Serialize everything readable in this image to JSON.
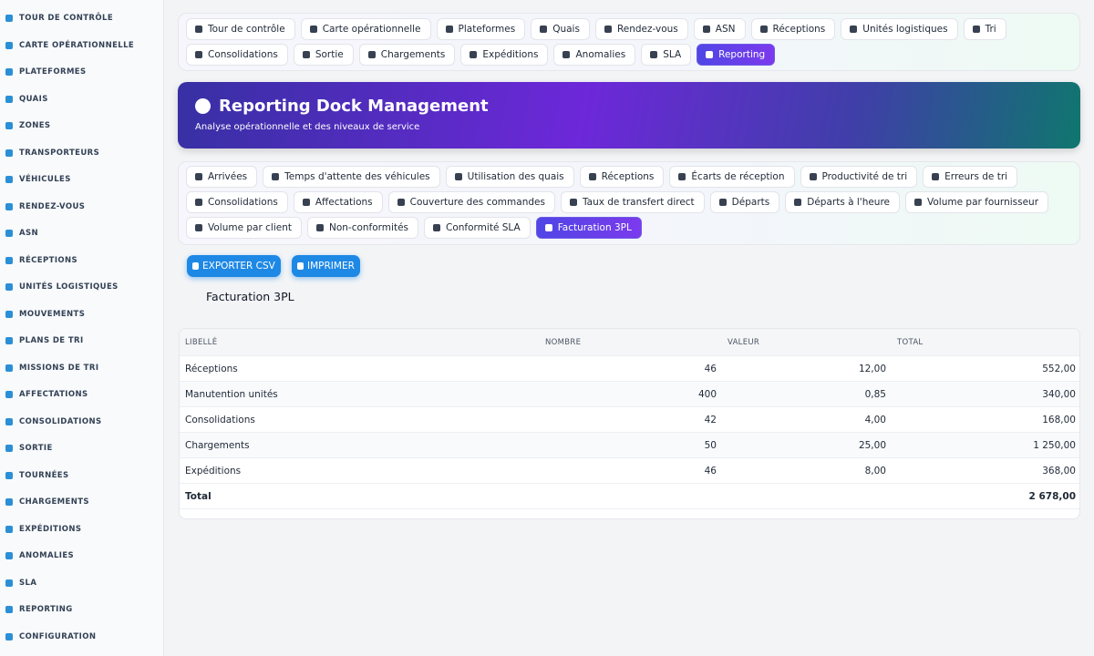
{
  "sidebar": {
    "items": [
      "TOUR DE CONTRÔLE",
      "CARTE OPÉRATIONNELLE",
      "PLATEFORMES",
      "QUAIS",
      "ZONES",
      "TRANSPORTEURS",
      "VÉHICULES",
      "RENDEZ-VOUS",
      "ASN",
      "RÉCEPTIONS",
      "UNITÉS LOGISTIQUES",
      "MOUVEMENTS",
      "PLANS DE TRI",
      "MISSIONS DE TRI",
      "AFFECTATIONS",
      "CONSOLIDATIONS",
      "SORTIE",
      "TOURNÉES",
      "CHARGEMENTS",
      "EXPÉDITIONS",
      "ANOMALIES",
      "SLA",
      "REPORTING",
      "CONFIGURATION"
    ]
  },
  "top_nav": {
    "items": [
      "Tour de contrôle",
      "Carte opérationnelle",
      "Plateformes",
      "Quais",
      "Rendez-vous",
      "ASN",
      "Réceptions",
      "Unités logistiques",
      "Tri",
      "Consolidations",
      "Sortie",
      "Chargements",
      "Expéditions",
      "Anomalies",
      "SLA",
      "Reporting"
    ],
    "active_index": 15
  },
  "header": {
    "title": "Reporting Dock Management",
    "subtitle": "Analyse opérationnelle et des niveaux de service"
  },
  "report_tabs": {
    "items": [
      "Arrivées",
      "Temps d'attente des véhicules",
      "Utilisation des quais",
      "Réceptions",
      "Écarts de réception",
      "Productivité de tri",
      "Erreurs de tri",
      "Consolidations",
      "Affectations",
      "Couverture des commandes",
      "Taux de transfert direct",
      "Départs",
      "Départs à l'heure",
      "Volume par fournisseur",
      "Volume par client",
      "Non-conformités",
      "Conformité SLA",
      "Facturation 3PL"
    ],
    "active_index": 17
  },
  "actions": [
    "EXPORTER CSV",
    "IMPRIMER"
  ],
  "section_title": "Facturation 3PL",
  "table": {
    "columns": [
      "LIBELLÉ",
      "NOMBRE",
      "VALEUR",
      "TOTAL"
    ],
    "rows": [
      [
        "Réceptions",
        "46",
        "12,00",
        "552,00"
      ],
      [
        "Manutention unités",
        "400",
        "0,85",
        "340,00"
      ],
      [
        "Consolidations",
        "42",
        "4,00",
        "168,00"
      ],
      [
        "Chargements",
        "50",
        "25,00",
        "1 250,00"
      ],
      [
        "Expéditions",
        "46",
        "8,00",
        "368,00"
      ]
    ],
    "total": {
      "label": "Total",
      "value": "2 678,00"
    }
  }
}
